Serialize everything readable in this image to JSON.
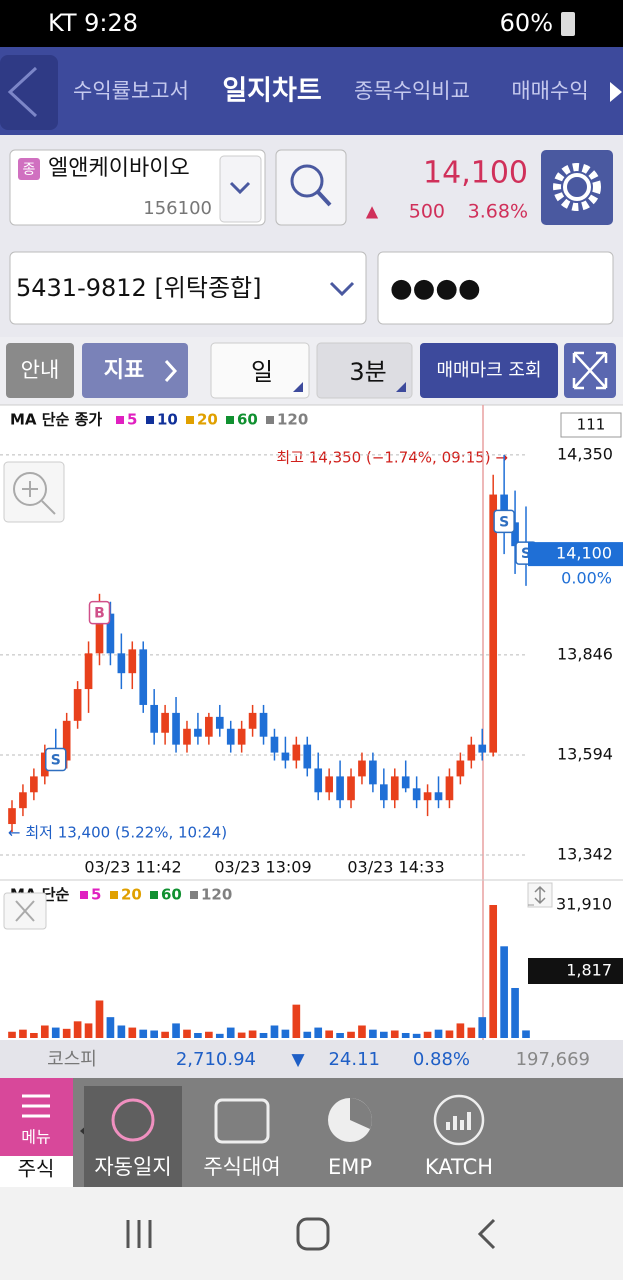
{
  "status_bar": {
    "carrier_time": "KT 9:28",
    "battery": "60%"
  },
  "tabs": [
    "수익률보고서",
    "일지차트",
    "종목수익비교",
    "매매수익"
  ],
  "stock": {
    "badge": "종",
    "name": "엘앤케이바이오",
    "code": "156100",
    "price": "14,100",
    "change_sign": "▲",
    "change": "500",
    "change_pct": "3.68%"
  },
  "account": {
    "number": "5431-9812 [위탁종합]",
    "password": "●●●●"
  },
  "toolbar": {
    "guide": "안내",
    "indicator": "지표",
    "period": "일",
    "interval": "3분",
    "trade_marks": "매매마크 조회"
  },
  "chart_data": [
    {
      "type": "candlestick",
      "legend_title": "MA 단순 종가",
      "ma_legend": [
        {
          "name": "5",
          "color": "#e020c0"
        },
        {
          "name": "10",
          "color": "#10309a"
        },
        {
          "name": "20",
          "color": "#e0a000"
        },
        {
          "name": "60",
          "color": "#109030"
        },
        {
          "name": "120",
          "color": "#808080"
        }
      ],
      "corner_label": "111",
      "high_annotation": "최고 14,350 (−1.74%, 09:15) →",
      "low_annotation": "← 최저 13,400 (5.22%, 10:24)",
      "x_labels": [
        "03/23 11:42",
        "03/23 13:09",
        "03/23 14:33"
      ],
      "ylim": [
        13342,
        14463
      ],
      "yticks": [
        {
          "value": 13342,
          "label": "13,342"
        },
        {
          "value": 13594,
          "label": "13,594"
        },
        {
          "value": 13846,
          "label": "13,846"
        },
        {
          "value": 14350,
          "label": "14,350"
        }
      ],
      "grid": true,
      "current": {
        "value": 14100,
        "label": "14,100",
        "pct": "0.00%"
      },
      "up_color": "#e8401c",
      "down_color": "#1f6fd6",
      "trade_marks": [
        {
          "label": "S",
          "index": 4
        },
        {
          "label": "B",
          "index": 8
        },
        {
          "label": "S",
          "index": 45
        },
        {
          "label": "S",
          "index": 47
        }
      ],
      "open": [
        13420,
        13460,
        13500,
        13540,
        13600,
        13580,
        13680,
        13760,
        13850,
        13950,
        13850,
        13800,
        13860,
        13720,
        13650,
        13700,
        13620,
        13660,
        13640,
        13690,
        13660,
        13620,
        13660,
        13700,
        13640,
        13600,
        13580,
        13620,
        13560,
        13500,
        13540,
        13480,
        13540,
        13580,
        13520,
        13480,
        13540,
        13510,
        13480,
        13500,
        13480,
        13540,
        13580,
        13620,
        13600,
        14250,
        14180,
        14120
      ],
      "high": [
        13480,
        13520,
        13560,
        13620,
        13660,
        13700,
        13780,
        13880,
        14000,
        13980,
        13900,
        13880,
        13880,
        13760,
        13720,
        13740,
        13680,
        13700,
        13700,
        13720,
        13680,
        13680,
        13720,
        13720,
        13660,
        13640,
        13640,
        13640,
        13600,
        13560,
        13580,
        13560,
        13600,
        13600,
        13560,
        13560,
        13580,
        13540,
        13520,
        13540,
        13560,
        13600,
        13640,
        13660,
        14300,
        14350,
        14260,
        14220
      ],
      "low": [
        13400,
        13440,
        13480,
        13520,
        13560,
        13560,
        13660,
        13700,
        13820,
        13820,
        13760,
        13760,
        13700,
        13620,
        13620,
        13600,
        13600,
        13620,
        13620,
        13640,
        13600,
        13600,
        13640,
        13620,
        13580,
        13560,
        13560,
        13540,
        13480,
        13480,
        13460,
        13460,
        13520,
        13500,
        13460,
        13460,
        13500,
        13460,
        13440,
        13460,
        13460,
        13520,
        13560,
        13580,
        13590,
        14100,
        14050,
        14020
      ],
      "close": [
        13460,
        13500,
        13540,
        13600,
        13580,
        13680,
        13760,
        13850,
        13950,
        13850,
        13800,
        13860,
        13720,
        13650,
        13700,
        13620,
        13660,
        13640,
        13690,
        13660,
        13620,
        13660,
        13700,
        13640,
        13600,
        13580,
        13620,
        13560,
        13500,
        13540,
        13480,
        13540,
        13580,
        13520,
        13480,
        13540,
        13510,
        13480,
        13500,
        13480,
        13540,
        13580,
        13620,
        13600,
        14250,
        14180,
        14120,
        14100
      ]
    },
    {
      "type": "bar",
      "legend_title": "MA 단순",
      "ma_legend": [
        {
          "name": "5",
          "color": "#e020c0"
        },
        {
          "name": "20",
          "color": "#e0a000"
        },
        {
          "name": "60",
          "color": "#109030"
        },
        {
          "name": "120",
          "color": "#808080"
        }
      ],
      "ylim": [
        0,
        31910
      ],
      "yticks": [
        {
          "value": 31910,
          "label": "31,910"
        }
      ],
      "current": {
        "value": 1817,
        "label": "1,817"
      },
      "values": [
        1500,
        2000,
        1200,
        3000,
        2500,
        2200,
        4000,
        3500,
        9000,
        5000,
        3000,
        2500,
        2000,
        1800,
        1500,
        3500,
        2000,
        1200,
        1500,
        1000,
        2500,
        1300,
        1800,
        1200,
        3000,
        2000,
        8000,
        1500,
        2500,
        1800,
        1200,
        1500,
        3000,
        2000,
        1500,
        1800,
        1200,
        1000,
        1500,
        2000,
        1800,
        3500,
        2500,
        5000,
        31910,
        22000,
        12000,
        1817
      ]
    }
  ],
  "index_bar": {
    "name": "코스피",
    "value": "2,710.94",
    "arrow": "▼",
    "change": "24.11",
    "pct": "0.88%",
    "volume": "197,669"
  },
  "bottom_nav": {
    "menu": "메뉴",
    "section": "주식",
    "items": [
      "자동일지",
      "주식대여",
      "EMP",
      "KATCH"
    ]
  }
}
